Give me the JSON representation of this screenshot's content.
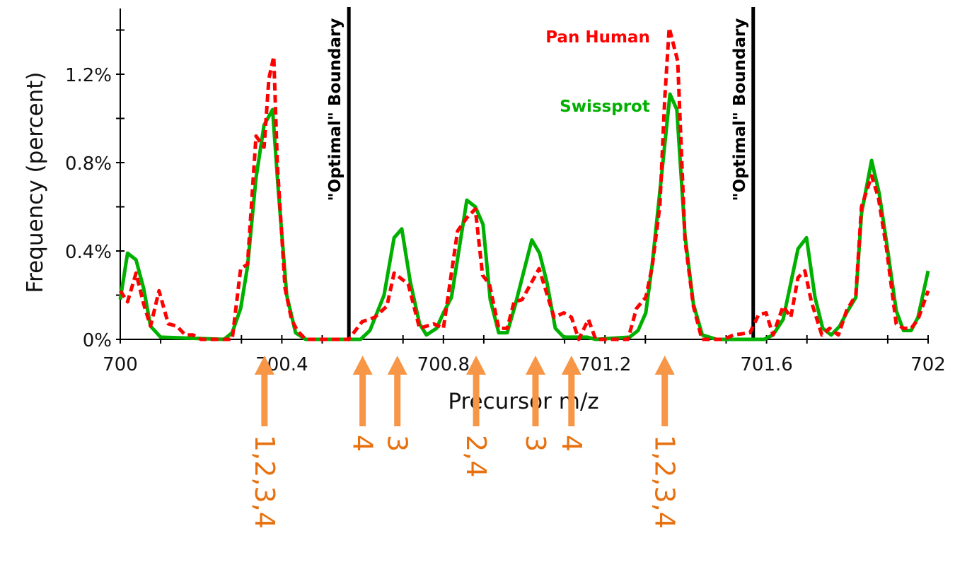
{
  "chart_data": {
    "type": "line",
    "title": "",
    "xlabel": "Precursor m/z",
    "ylabel": "Frequency  (percent)",
    "xlim": [
      700,
      702
    ],
    "ylim": [
      0,
      1.5
    ],
    "x_ticks": [
      700,
      700.4,
      700.8,
      701.2,
      701.6,
      702
    ],
    "x_tick_labels": [
      "700",
      "700.4",
      "700.8",
      "701.2",
      "701.6",
      "702"
    ],
    "y_ticks": [
      0,
      0.4,
      0.8,
      1.2
    ],
    "y_tick_labels": [
      "0%",
      "0.4%",
      "0.8%",
      "1.2%"
    ],
    "y_minor_ticks": [
      0.2,
      0.6,
      1.0,
      1.4
    ],
    "grid": false,
    "legend_placement": "inline near top-right peak",
    "series": [
      {
        "name": "Swissprot",
        "color": "#00b000",
        "style": "solid",
        "points": [
          [
            700.0,
            0.18
          ],
          [
            700.018,
            0.39
          ],
          [
            700.039,
            0.36
          ],
          [
            700.058,
            0.23
          ],
          [
            700.075,
            0.06
          ],
          [
            700.1,
            0.01
          ],
          [
            700.257,
            0
          ],
          [
            700.277,
            0.03
          ],
          [
            700.298,
            0.14
          ],
          [
            700.315,
            0.33
          ],
          [
            700.336,
            0.73
          ],
          [
            700.356,
            0.97
          ],
          [
            700.377,
            1.04
          ],
          [
            700.391,
            0.68
          ],
          [
            700.412,
            0.2
          ],
          [
            700.434,
            0.03
          ],
          [
            700.459,
            0
          ],
          [
            700.595,
            0
          ],
          [
            700.618,
            0.04
          ],
          [
            700.653,
            0.2
          ],
          [
            700.678,
            0.46
          ],
          [
            700.697,
            0.5
          ],
          [
            700.718,
            0.26
          ],
          [
            700.741,
            0.07
          ],
          [
            700.758,
            0.02
          ],
          [
            700.783,
            0.05
          ],
          [
            700.8,
            0.12
          ],
          [
            700.82,
            0.19
          ],
          [
            700.858,
            0.63
          ],
          [
            700.879,
            0.6
          ],
          [
            700.898,
            0.52
          ],
          [
            700.916,
            0.18
          ],
          [
            700.937,
            0.03
          ],
          [
            700.958,
            0.03
          ],
          [
            700.977,
            0.15
          ],
          [
            701.019,
            0.45
          ],
          [
            701.038,
            0.39
          ],
          [
            701.056,
            0.26
          ],
          [
            701.077,
            0.05
          ],
          [
            701.098,
            0.01
          ],
          [
            701.156,
            0.01
          ],
          [
            701.177,
            0
          ],
          [
            701.261,
            0.01
          ],
          [
            701.282,
            0.04
          ],
          [
            701.301,
            0.12
          ],
          [
            701.317,
            0.34
          ],
          [
            701.34,
            0.74
          ],
          [
            701.361,
            1.11
          ],
          [
            701.378,
            1.04
          ],
          [
            701.398,
            0.47
          ],
          [
            701.419,
            0.16
          ],
          [
            701.441,
            0.02
          ],
          [
            701.476,
            0
          ],
          [
            701.594,
            0
          ],
          [
            701.616,
            0.02
          ],
          [
            701.641,
            0.09
          ],
          [
            701.678,
            0.41
          ],
          [
            701.699,
            0.46
          ],
          [
            701.72,
            0.19
          ],
          [
            701.739,
            0.05
          ],
          [
            701.76,
            0.02
          ],
          [
            701.781,
            0.06
          ],
          [
            701.798,
            0.12
          ],
          [
            701.821,
            0.19
          ],
          [
            701.835,
            0.57
          ],
          [
            701.86,
            0.81
          ],
          [
            701.879,
            0.66
          ],
          [
            701.897,
            0.44
          ],
          [
            701.921,
            0.13
          ],
          [
            701.939,
            0.04
          ],
          [
            701.958,
            0.04
          ],
          [
            701.975,
            0.1
          ],
          [
            702.0,
            0.31
          ]
        ]
      },
      {
        "name": "Pan Human",
        "color": "#ff0000",
        "style": "dashed",
        "points": [
          [
            700.0,
            0.22
          ],
          [
            700.018,
            0.17
          ],
          [
            700.039,
            0.3
          ],
          [
            700.058,
            0.16
          ],
          [
            700.075,
            0.06
          ],
          [
            700.096,
            0.22
          ],
          [
            700.119,
            0.07
          ],
          [
            700.14,
            0.06
          ],
          [
            700.161,
            0.02
          ],
          [
            700.18,
            0.02
          ],
          [
            700.2,
            0
          ],
          [
            700.277,
            0
          ],
          [
            700.298,
            0.32
          ],
          [
            700.315,
            0.34
          ],
          [
            700.336,
            0.92
          ],
          [
            700.356,
            0.87
          ],
          [
            700.368,
            1.18
          ],
          [
            700.38,
            1.28
          ],
          [
            700.389,
            0.79
          ],
          [
            700.408,
            0.23
          ],
          [
            700.424,
            0.09
          ],
          [
            700.438,
            0.04
          ],
          [
            700.459,
            0
          ],
          [
            700.566,
            0
          ],
          [
            700.578,
            0.03
          ],
          [
            700.599,
            0.08
          ],
          [
            700.63,
            0.1
          ],
          [
            700.66,
            0.15
          ],
          [
            700.678,
            0.3
          ],
          [
            700.713,
            0.25
          ],
          [
            700.741,
            0.05
          ],
          [
            700.776,
            0.07
          ],
          [
            700.8,
            0.05
          ],
          [
            700.835,
            0.49
          ],
          [
            700.858,
            0.55
          ],
          [
            700.879,
            0.59
          ],
          [
            700.897,
            0.29
          ],
          [
            700.914,
            0.25
          ],
          [
            700.937,
            0.05
          ],
          [
            700.958,
            0.05
          ],
          [
            700.975,
            0.17
          ],
          [
            700.995,
            0.18
          ],
          [
            701.037,
            0.32
          ],
          [
            701.074,
            0.1
          ],
          [
            701.098,
            0.12
          ],
          [
            701.117,
            0.1
          ],
          [
            701.135,
            0
          ],
          [
            701.159,
            0.09
          ],
          [
            701.177,
            0
          ],
          [
            701.257,
            0
          ],
          [
            701.278,
            0.14
          ],
          [
            701.301,
            0.19
          ],
          [
            701.317,
            0.33
          ],
          [
            701.336,
            0.61
          ],
          [
            701.348,
            1.09
          ],
          [
            701.359,
            1.41
          ],
          [
            701.38,
            1.26
          ],
          [
            701.398,
            0.45
          ],
          [
            701.419,
            0.15
          ],
          [
            701.44,
            0
          ],
          [
            701.494,
            0
          ],
          [
            701.518,
            0.02
          ],
          [
            701.559,
            0.03
          ],
          [
            701.58,
            0.11
          ],
          [
            701.599,
            0.12
          ],
          [
            701.616,
            0.02
          ],
          [
            701.641,
            0.15
          ],
          [
            701.66,
            0.1
          ],
          [
            701.678,
            0.28
          ],
          [
            701.695,
            0.31
          ],
          [
            701.711,
            0.17
          ],
          [
            701.737,
            0.02
          ],
          [
            701.756,
            0.05
          ],
          [
            701.778,
            0.02
          ],
          [
            701.798,
            0.13
          ],
          [
            701.821,
            0.2
          ],
          [
            701.835,
            0.6
          ],
          [
            701.86,
            0.74
          ],
          [
            701.877,
            0.64
          ],
          [
            701.897,
            0.41
          ],
          [
            701.921,
            0.07
          ],
          [
            701.939,
            0.05
          ],
          [
            701.958,
            0.05
          ],
          [
            701.975,
            0.09
          ],
          [
            702.0,
            0.22
          ]
        ]
      }
    ],
    "boundaries": [
      {
        "x": 700.566,
        "label": "\"Optimal\" Boundary"
      },
      {
        "x": 701.567,
        "label": "\"Optimal\" Boundary"
      }
    ],
    "annotations": [
      {
        "x": 700.357,
        "label": "1,2,3,4"
      },
      {
        "x": 700.6,
        "label": "4"
      },
      {
        "x": 700.686,
        "label": "3"
      },
      {
        "x": 700.881,
        "label": "2,4"
      },
      {
        "x": 701.028,
        "label": "3"
      },
      {
        "x": 701.117,
        "label": "4"
      },
      {
        "x": 701.348,
        "label": "1,2,3,4"
      }
    ],
    "annotation_color": "#f79646",
    "annotation_text_color": "#e8710f"
  }
}
